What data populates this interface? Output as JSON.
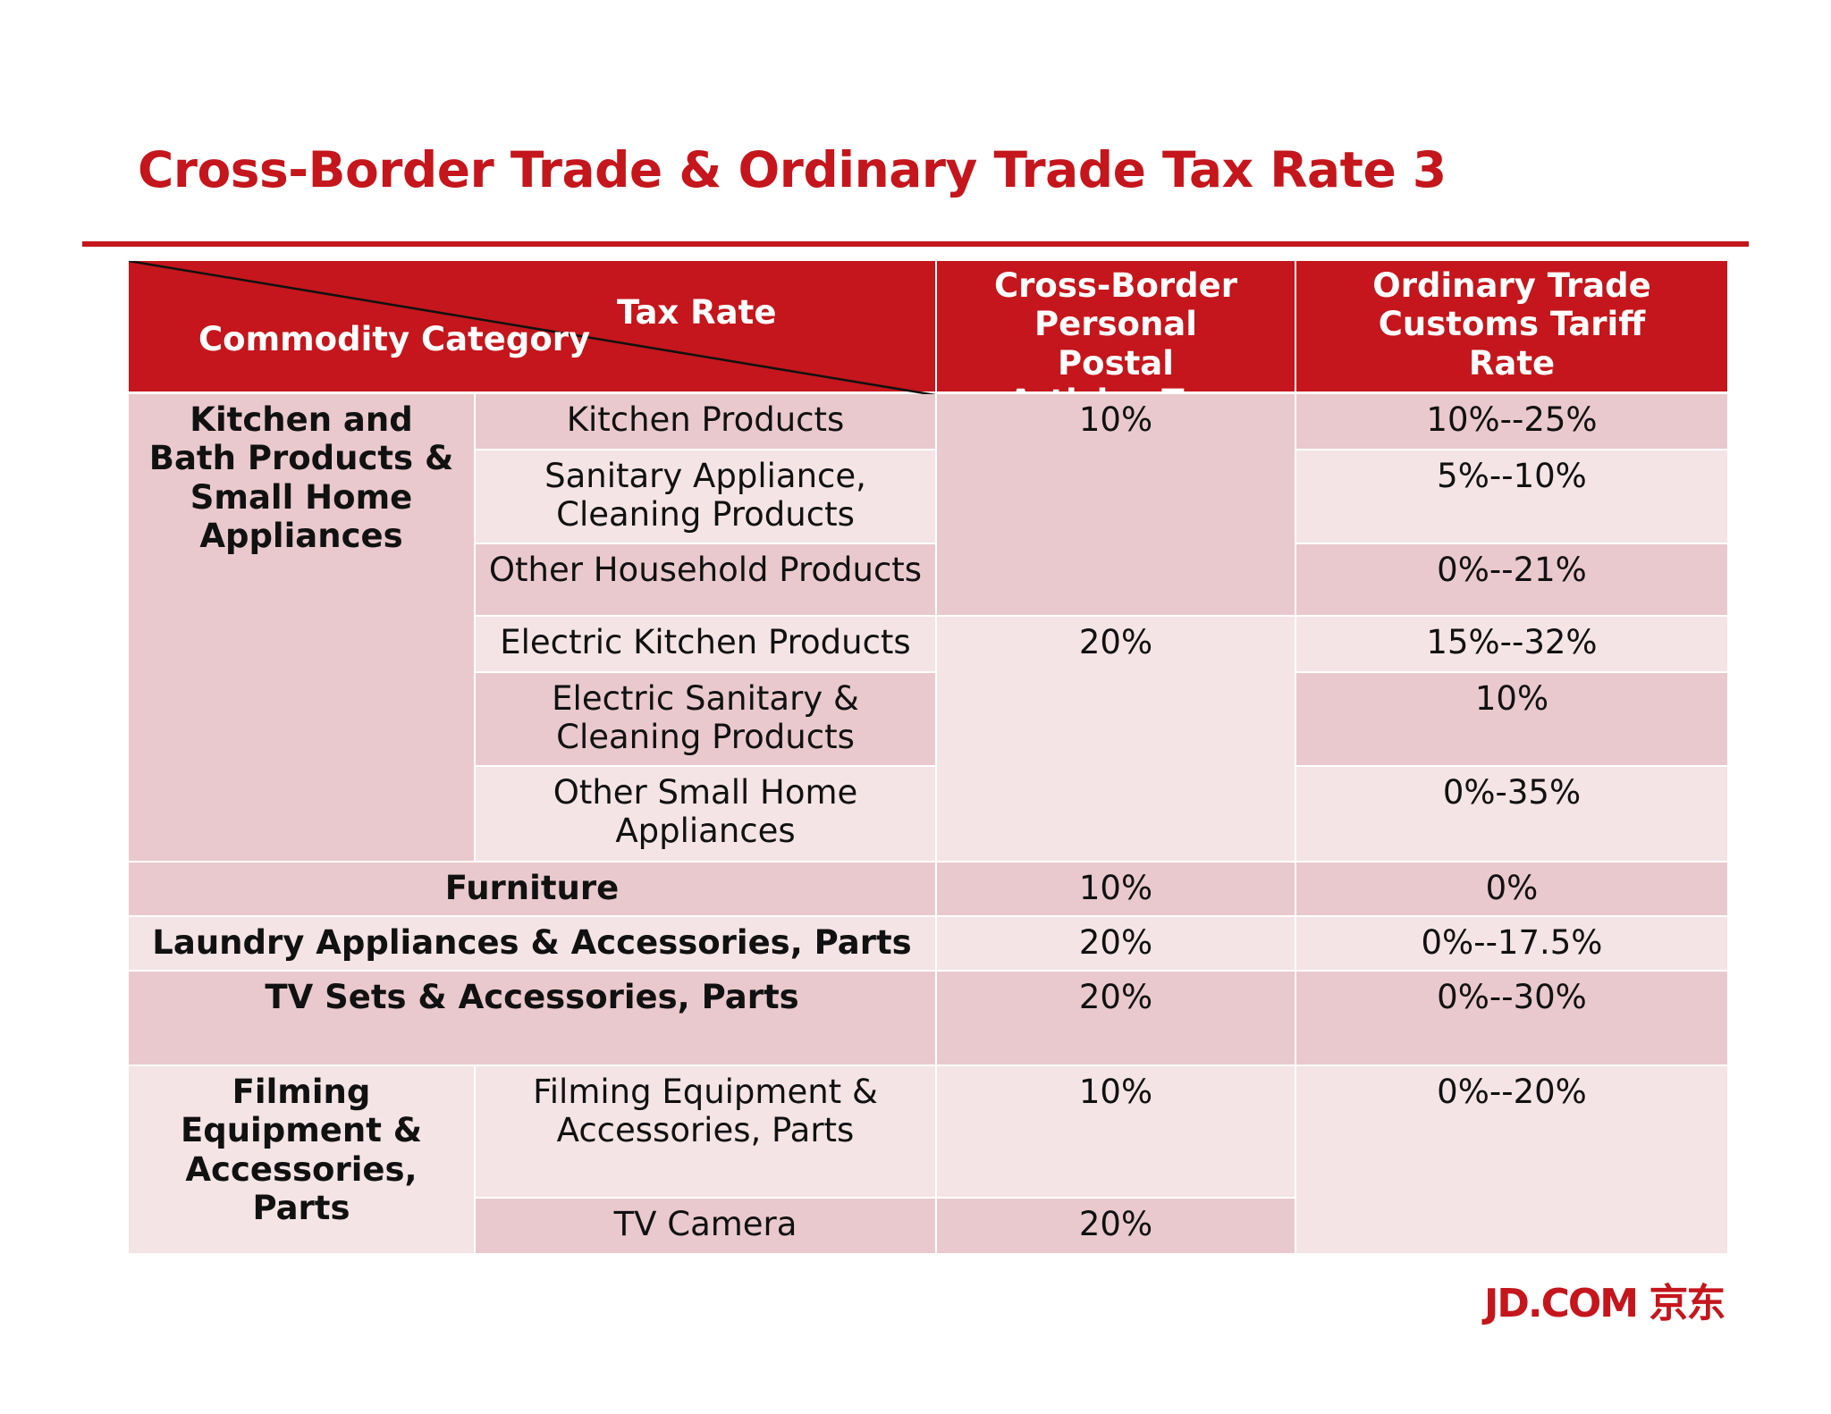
{
  "title": "Cross-Border Trade & Ordinary Trade Tax Rate 3",
  "header": {
    "tax_rate": "Tax Rate",
    "commodity_category": "Commodity Category",
    "cross_border": "Cross-Border Personal Postal Articles Tax Rate",
    "ordinary": "Ordinary Trade Customs Tariff Rate"
  },
  "groups": {
    "kitchen": "Kitchen and Bath Products & Small Home Appliances",
    "furniture": "Furniture",
    "laundry": "Laundry Appliances & Accessories, Parts",
    "tv_sets": "TV Sets & Accessories, Parts",
    "filming": "Filming Equipment & Accessories, Parts"
  },
  "subcategories": {
    "kitchen_products": "Kitchen Products",
    "sanitary": "Sanitary Appliance, Cleaning Products",
    "other_household": "Other Household Products",
    "electric_kitchen": "Electric Kitchen Products",
    "electric_sanitary": "Electric Sanitary & Cleaning Products",
    "other_small": "Other Small Home Appliances",
    "filming_sub": "Filming Equipment & Accessories, Parts",
    "tv_camera": "TV Camera"
  },
  "cross_border_rates": {
    "household": "10%",
    "appliances": "20%",
    "furniture": "10%",
    "laundry": "20%",
    "tv_sets": "20%",
    "filming": "10%",
    "tv_camera": "20%"
  },
  "ordinary_rates": {
    "kitchen_products": "10%--25%",
    "sanitary": "5%--10%",
    "other_household": "0%--21%",
    "electric_kitchen": "15%--32%",
    "electric_sanitary": "10%",
    "other_small": "0%-35%",
    "furniture": "0%",
    "laundry": "0%--17.5%",
    "tv_sets": "0%--30%",
    "filming": "0%--20%"
  },
  "logo": "JD.COM 京东"
}
